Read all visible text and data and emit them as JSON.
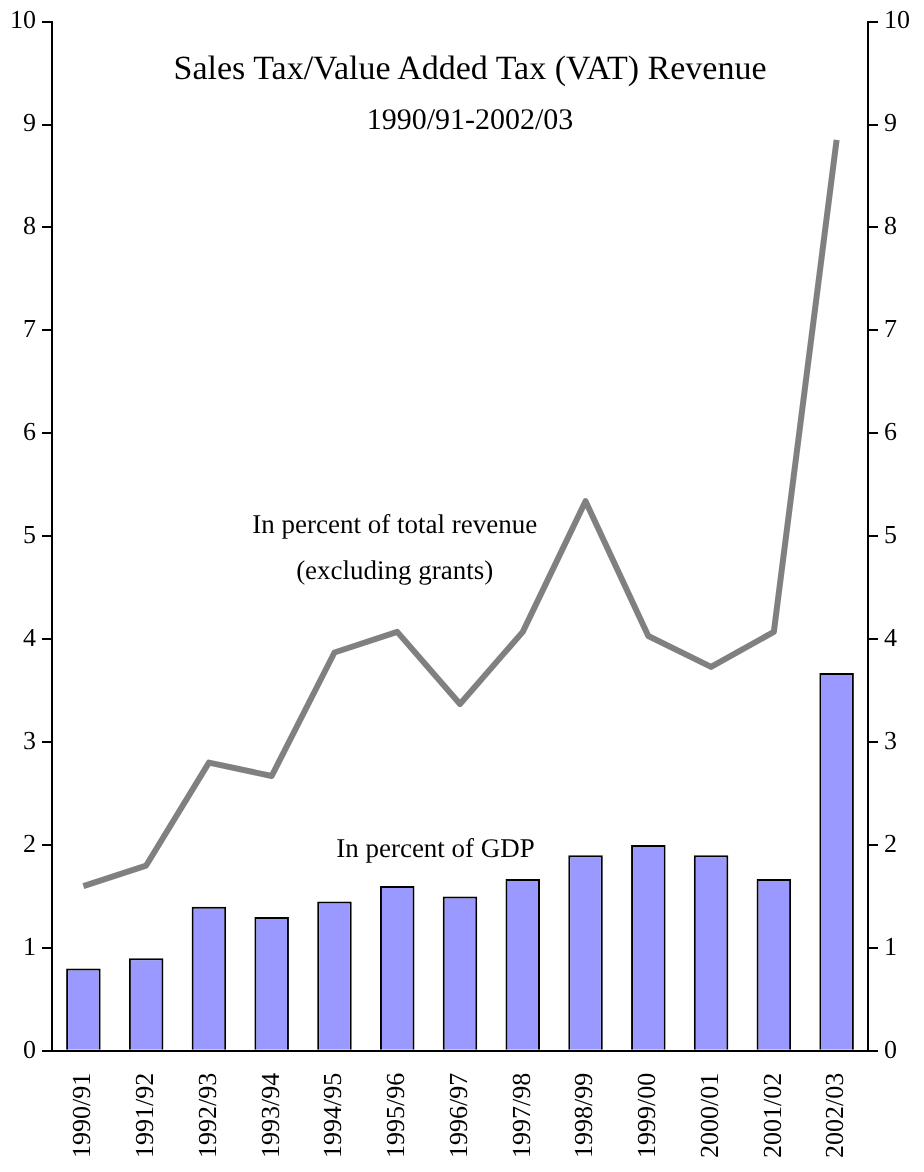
{
  "chart_data": {
    "type": "bar",
    "title": "Sales Tax/Value Added Tax (VAT) Revenue",
    "subtitle": "1990/91-2002/03",
    "categories": [
      "1990/91",
      "1991/92",
      "1992/93",
      "1993/94",
      "1994/95",
      "1995/96",
      "1996/97",
      "1997/98",
      "1998/99",
      "1999/00",
      "2000/01",
      "2001/02",
      "2002/03"
    ],
    "series": [
      {
        "color": "#9999ff",
        "values": [
          0.8,
          0.9,
          1.4,
          1.3,
          1.45,
          1.6,
          1.5,
          1.67,
          1.9,
          2.0,
          1.9,
          1.67,
          3.67
        ]
      },
      {
        "type": "line",
        "color": "#808080",
        "values": [
          1.6,
          1.8,
          2.8,
          2.67,
          3.87,
          4.07,
          3.37,
          4.07,
          5.34,
          4.03,
          3.73,
          4.07,
          8.85
        ]
      }
    ],
    "annotations": [
      "In percent of total revenue",
      "(excluding grants)",
      "In percent of GDP"
    ],
    "ylim": [
      0,
      10
    ],
    "yticks": [
      0,
      1,
      2,
      3,
      4,
      5,
      6,
      7,
      8,
      9,
      10
    ],
    "y2lim": [
      0,
      10
    ],
    "y2ticks": [
      0,
      1,
      2,
      3,
      4,
      5,
      6,
      7,
      8,
      9,
      10
    ],
    "grid": false,
    "legend": false,
    "marker": "none",
    "line_style": "solid"
  }
}
